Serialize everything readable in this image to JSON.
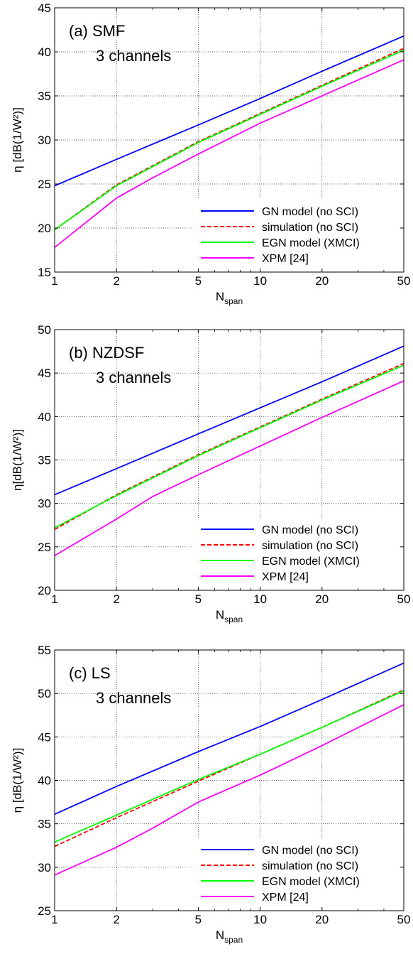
{
  "chart_data": [
    {
      "type": "line",
      "annotation_lines": [
        "(a) SMF",
        "3 channels"
      ],
      "xlabel": "N",
      "xlabel_sub": "span",
      "ylabel": "η [dB(1/W²)]",
      "xscale": "log",
      "xlim": [
        1,
        50
      ],
      "xticks": [
        1,
        2,
        5,
        10,
        20,
        50
      ],
      "ylim": [
        15,
        45
      ],
      "yticks": [
        15,
        20,
        25,
        30,
        35,
        40,
        45
      ],
      "grid": true,
      "legend_position": "bottom-right",
      "series": [
        {
          "name": "GN model (no SCI)",
          "color": "#0000ff",
          "dash": "solid",
          "x": [
            1,
            2,
            5,
            10,
            20,
            50
          ],
          "y": [
            24.8,
            27.8,
            31.7,
            34.7,
            37.8,
            41.8
          ]
        },
        {
          "name": "simulation (no SCI)",
          "color": "#ff0000",
          "dash": "dashed",
          "x": [
            1,
            2,
            5,
            10,
            20,
            50
          ],
          "y": [
            19.8,
            24.9,
            29.8,
            33.0,
            36.2,
            40.4
          ]
        },
        {
          "name": "EGN model (XMCI)",
          "color": "#00ff00",
          "dash": "solid",
          "x": [
            1,
            2,
            5,
            10,
            20,
            50
          ],
          "y": [
            19.8,
            24.8,
            29.7,
            32.9,
            36.1,
            40.2
          ]
        },
        {
          "name": "XPM [24]",
          "color": "#ff00ff",
          "dash": "solid",
          "x": [
            1,
            2,
            3,
            5,
            10,
            20,
            50
          ],
          "y": [
            17.8,
            23.4,
            25.7,
            28.4,
            31.9,
            35.0,
            39.1
          ]
        }
      ]
    },
    {
      "type": "line",
      "annotation_lines": [
        "(b) NZDSF",
        "3 channels"
      ],
      "xlabel": "N",
      "xlabel_sub": "span",
      "ylabel": "η[dB(1/W²)]",
      "xscale": "log",
      "xlim": [
        1,
        50
      ],
      "xticks": [
        1,
        2,
        5,
        10,
        20,
        50
      ],
      "ylim": [
        20,
        50
      ],
      "yticks": [
        20,
        25,
        30,
        35,
        40,
        45,
        50
      ],
      "grid": true,
      "legend_position": "bottom-right",
      "series": [
        {
          "name": "GN model (no SCI)",
          "color": "#0000ff",
          "dash": "solid",
          "x": [
            1,
            2,
            5,
            10,
            20,
            50
          ],
          "y": [
            31.0,
            34.0,
            38.0,
            41.0,
            44.0,
            48.1
          ]
        },
        {
          "name": "simulation (no SCI)",
          "color": "#ff0000",
          "dash": "dashed",
          "x": [
            1,
            2,
            5,
            10,
            20,
            50
          ],
          "y": [
            27.0,
            31.0,
            35.6,
            38.8,
            42.0,
            46.1
          ]
        },
        {
          "name": "EGN model (XMCI)",
          "color": "#00ff00",
          "dash": "solid",
          "x": [
            1,
            2,
            5,
            10,
            20,
            50
          ],
          "y": [
            27.2,
            30.9,
            35.5,
            38.7,
            41.9,
            45.9
          ]
        },
        {
          "name": "XPM [24]",
          "color": "#ff00ff",
          "dash": "solid",
          "x": [
            1,
            2,
            3,
            5,
            10,
            20,
            50
          ],
          "y": [
            24.0,
            28.2,
            30.8,
            33.3,
            36.6,
            39.9,
            44.1
          ]
        }
      ]
    },
    {
      "type": "line",
      "annotation_lines": [
        "(c) LS",
        "3 channels"
      ],
      "xlabel": "N",
      "xlabel_sub": "span",
      "ylabel": "η [dB(1/W²)]",
      "xscale": "log",
      "xlim": [
        1,
        50
      ],
      "xticks": [
        1,
        2,
        5,
        10,
        20,
        50
      ],
      "ylim": [
        25,
        55
      ],
      "yticks": [
        25,
        30,
        35,
        40,
        45,
        50,
        55
      ],
      "grid": true,
      "legend_position": "bottom-right",
      "series": [
        {
          "name": "GN model (no SCI)",
          "color": "#0000ff",
          "dash": "solid",
          "x": [
            1,
            2,
            5,
            10,
            20,
            50
          ],
          "y": [
            36.1,
            39.3,
            43.3,
            46.2,
            49.3,
            53.5
          ]
        },
        {
          "name": "simulation (no SCI)",
          "color": "#ff0000",
          "dash": "dashed",
          "x": [
            1,
            2,
            5,
            10,
            20,
            50
          ],
          "y": [
            32.4,
            35.7,
            39.9,
            43.0,
            46.1,
            50.4
          ]
        },
        {
          "name": "EGN model (XMCI)",
          "color": "#00ff00",
          "dash": "solid",
          "x": [
            1,
            2,
            5,
            10,
            20,
            50
          ],
          "y": [
            32.9,
            36.0,
            40.1,
            43.0,
            46.1,
            50.3
          ]
        },
        {
          "name": "XPM [24]",
          "color": "#ff00ff",
          "dash": "solid",
          "x": [
            1,
            2,
            3,
            5,
            10,
            20,
            50
          ],
          "y": [
            29.1,
            32.3,
            34.5,
            37.5,
            40.6,
            44.0,
            48.7
          ]
        }
      ]
    }
  ]
}
